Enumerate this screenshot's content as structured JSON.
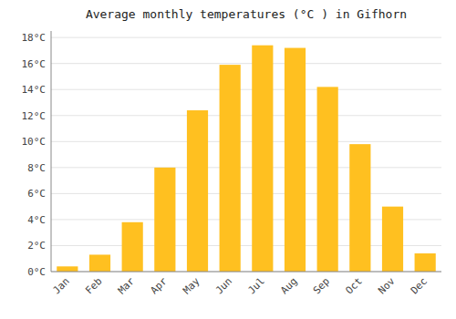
{
  "chart_data": {
    "type": "bar",
    "title": "Average monthly temperatures (°C ) in Gifhorn",
    "categories": [
      "Jan",
      "Feb",
      "Mar",
      "Apr",
      "May",
      "Jun",
      "Jul",
      "Aug",
      "Sep",
      "Oct",
      "Nov",
      "Dec"
    ],
    "values": [
      0.4,
      1.3,
      3.8,
      8.0,
      12.4,
      15.9,
      17.4,
      17.2,
      14.2,
      9.8,
      5.0,
      1.4
    ],
    "color": "#FFC020",
    "ylim": [
      0,
      18.5
    ],
    "yticks": [
      {
        "value": 0,
        "label": "0°C"
      },
      {
        "value": 2,
        "label": "2°C"
      },
      {
        "value": 4,
        "label": "4°C"
      },
      {
        "value": 6,
        "label": "6°C"
      },
      {
        "value": 8,
        "label": "8°C"
      },
      {
        "value": 10,
        "label": "10°C"
      },
      {
        "value": 12,
        "label": "12°C"
      },
      {
        "value": 14,
        "label": "14°C"
      },
      {
        "value": 16,
        "label": "16°C"
      },
      {
        "value": 18,
        "label": "18°C"
      }
    ],
    "grid": true
  }
}
